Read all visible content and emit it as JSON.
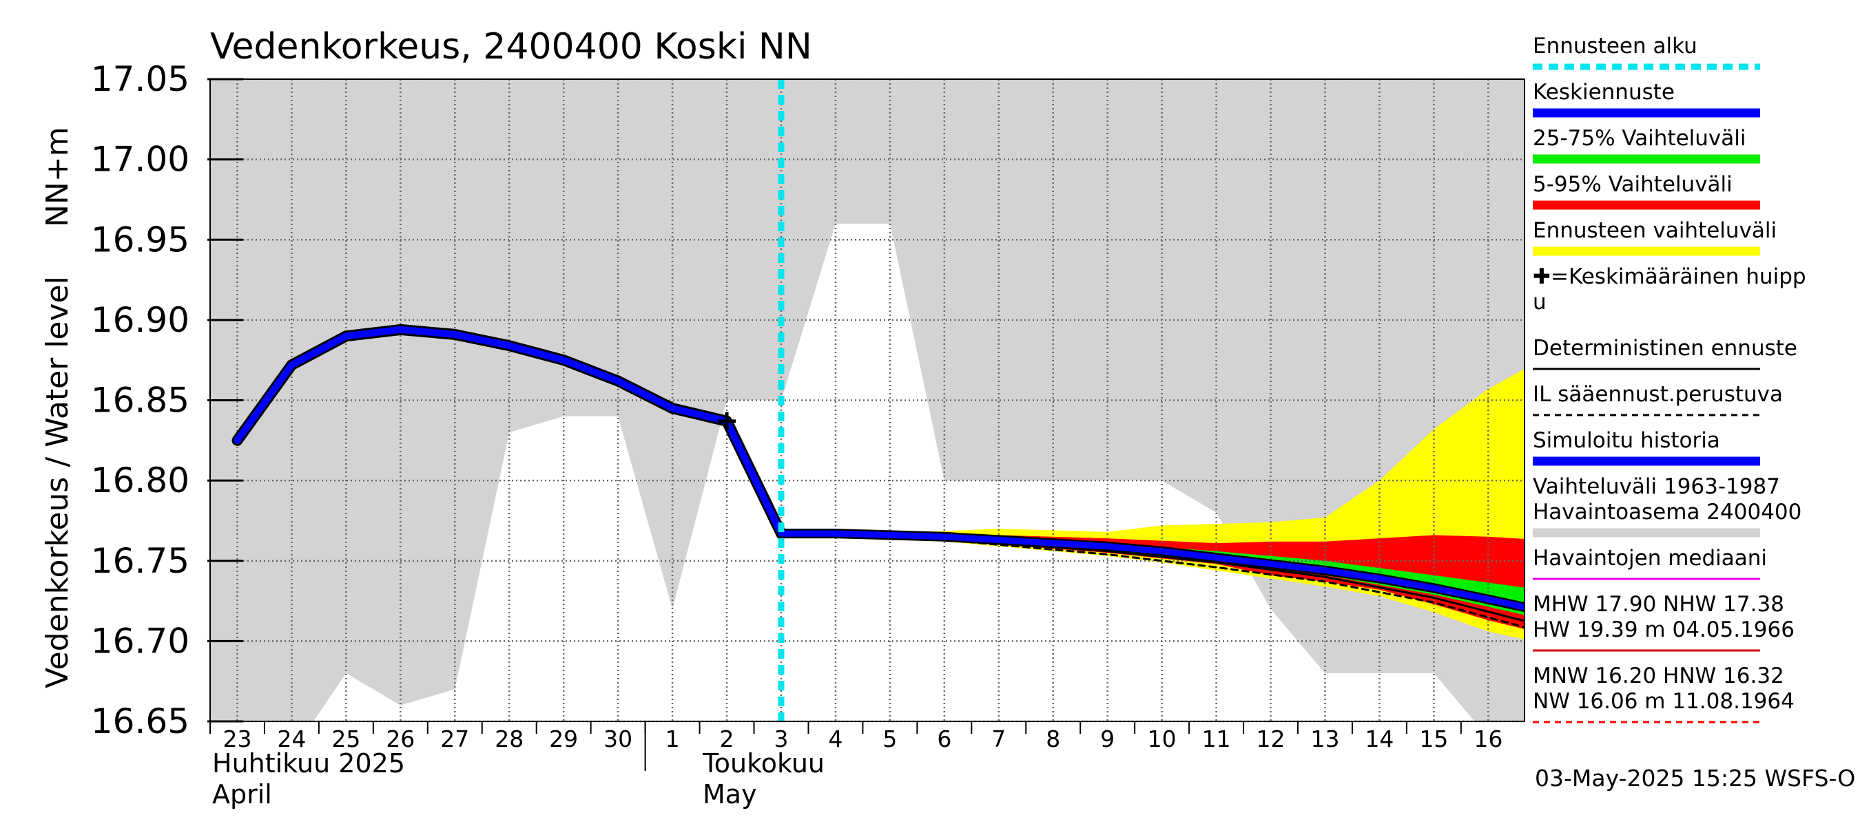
{
  "chart_data": {
    "type": "line",
    "title": "Vedenkorkeus, 2400400 Koski NN",
    "ylabel_left": "Vedenkorkeus / Water level",
    "ylabel_unit": "NN+m",
    "ylim": [
      16.65,
      17.05
    ],
    "y_ticks": [
      "16.65",
      "16.70",
      "16.75",
      "16.80",
      "16.85",
      "16.90",
      "16.95",
      "17.00",
      "17.05"
    ],
    "x_day_labels": [
      "23",
      "24",
      "25",
      "26",
      "27",
      "28",
      "29",
      "30",
      "1",
      "2",
      "3",
      "4",
      "5",
      "6",
      "7",
      "8",
      "9",
      "10",
      "11",
      "12",
      "13",
      "14",
      "15",
      "16"
    ],
    "month_labels": {
      "april_fi": "Huhtikuu  2025",
      "april_en": "April",
      "may_fi": "Toukokuu",
      "may_en": "May"
    },
    "grid": true,
    "forecast_start": "2025-05-03",
    "peak_marker": {
      "date": "2025-05-02",
      "value": 16.837
    },
    "simulated_history": [
      [
        "2025-04-23",
        16.825
      ],
      [
        "2025-04-24",
        16.872
      ],
      [
        "2025-04-25",
        16.89
      ],
      [
        "2025-04-26",
        16.894
      ],
      [
        "2025-04-27",
        16.891
      ],
      [
        "2025-04-28",
        16.884
      ],
      [
        "2025-04-29",
        16.875
      ],
      [
        "2025-04-30",
        16.862
      ],
      [
        "2025-05-01",
        16.845
      ],
      [
        "2025-05-02",
        16.837
      ],
      [
        "2025-05-03",
        16.767
      ]
    ],
    "median_forecast": [
      [
        "2025-05-03",
        16.767
      ],
      [
        "2025-05-04",
        16.767
      ],
      [
        "2025-05-05",
        16.766
      ],
      [
        "2025-05-06",
        16.765
      ],
      [
        "2025-05-07",
        16.763
      ],
      [
        "2025-05-08",
        16.761
      ],
      [
        "2025-05-09",
        16.759
      ],
      [
        "2025-05-10",
        16.756
      ],
      [
        "2025-05-11",
        16.752
      ],
      [
        "2025-05-12",
        16.748
      ],
      [
        "2025-05-13",
        16.744
      ],
      [
        "2025-05-14",
        16.739
      ],
      [
        "2025-05-15",
        16.733
      ],
      [
        "2025-05-16",
        16.726
      ],
      [
        "2025-05-16T23:00",
        16.719
      ]
    ],
    "deterministic_forecast": [
      [
        "2025-05-03",
        16.767
      ],
      [
        "2025-05-05",
        16.766
      ],
      [
        "2025-05-07",
        16.761
      ],
      [
        "2025-05-09",
        16.756
      ],
      [
        "2025-05-11",
        16.749
      ],
      [
        "2025-05-13",
        16.74
      ],
      [
        "2025-05-15",
        16.727
      ],
      [
        "2025-05-16T23:00",
        16.71
      ]
    ],
    "il_forecast": [
      [
        "2025-05-03",
        16.767
      ],
      [
        "2025-05-05",
        16.766
      ],
      [
        "2025-05-07",
        16.76
      ],
      [
        "2025-05-09",
        16.754
      ],
      [
        "2025-05-11",
        16.746
      ],
      [
        "2025-05-13",
        16.737
      ],
      [
        "2025-05-15",
        16.724
      ],
      [
        "2025-05-16T23:00",
        16.706
      ]
    ],
    "band_total": {
      "dates": [
        "2025-05-03",
        "2025-05-05",
        "2025-05-07",
        "2025-05-09",
        "2025-05-10",
        "2025-05-12",
        "2025-05-13",
        "2025-05-14",
        "2025-05-15",
        "2025-05-16",
        "2025-05-16T23:00"
      ],
      "upper": [
        16.767,
        16.767,
        16.77,
        16.768,
        16.772,
        16.774,
        16.777,
        16.8,
        16.832,
        16.857,
        16.875
      ],
      "lower": [
        16.767,
        16.765,
        16.759,
        16.753,
        16.749,
        16.739,
        16.734,
        16.728,
        16.718,
        16.706,
        16.699
      ]
    },
    "band_5_95": {
      "dates": [
        "2025-05-03",
        "2025-05-05",
        "2025-05-07",
        "2025-05-09",
        "2025-05-11",
        "2025-05-12",
        "2025-05-13",
        "2025-05-14",
        "2025-05-15",
        "2025-05-16",
        "2025-05-16T23:00"
      ],
      "upper": [
        16.767,
        16.767,
        16.766,
        16.764,
        16.761,
        16.762,
        16.762,
        16.764,
        16.766,
        16.765,
        16.763
      ],
      "lower": [
        16.767,
        16.765,
        16.76,
        16.755,
        16.748,
        16.741,
        16.737,
        16.732,
        16.723,
        16.713,
        16.705
      ]
    },
    "band_25_75": {
      "dates": [
        "2025-05-03",
        "2025-05-05",
        "2025-05-07",
        "2025-05-09",
        "2025-05-11",
        "2025-05-13",
        "2025-05-15",
        "2025-05-16T23:00"
      ],
      "upper": [
        16.767,
        16.767,
        16.764,
        16.761,
        16.756,
        16.75,
        16.741,
        16.732
      ],
      "lower": [
        16.767,
        16.766,
        16.761,
        16.756,
        16.749,
        16.741,
        16.729,
        16.714
      ]
    },
    "historical_range": {
      "dates": [
        "2025-04-23",
        "2025-04-24",
        "2025-04-25",
        "2025-04-26",
        "2025-04-27",
        "2025-04-28",
        "2025-04-29",
        "2025-04-30",
        "2025-05-01",
        "2025-05-02",
        "2025-05-03",
        "2025-05-04",
        "2025-05-05",
        "2025-05-06",
        "2025-05-07",
        "2025-05-08",
        "2025-05-09",
        "2025-05-10",
        "2025-05-11",
        "2025-05-12",
        "2025-05-13",
        "2025-05-14",
        "2025-05-15",
        "2025-05-16",
        "2025-05-16T23:00"
      ],
      "upper": [
        17.05,
        17.05,
        17.05,
        17.05,
        17.05,
        17.05,
        17.05,
        17.05,
        17.05,
        17.05,
        17.05,
        17.05,
        17.05,
        17.05,
        17.05,
        17.05,
        17.05,
        17.05,
        17.05,
        17.05,
        17.05,
        17.05,
        17.05,
        17.05,
        17.05
      ],
      "lower": [
        16.65,
        16.63,
        16.68,
        16.66,
        16.67,
        16.83,
        16.84,
        16.84,
        16.72,
        16.85,
        16.85,
        16.96,
        16.96,
        16.8,
        16.8,
        16.8,
        16.8,
        16.8,
        16.78,
        16.72,
        16.68,
        16.68,
        16.68,
        16.64,
        16.64
      ]
    },
    "legend": [
      {
        "label": "Ennusteen alku",
        "color": "#00e5ee",
        "style": "dashed-thick"
      },
      {
        "label": "Keskiennuste",
        "color": "#0000ff",
        "style": "line"
      },
      {
        "label": "25-75% Vaihteluväli",
        "color": "#00ee00",
        "style": "line"
      },
      {
        "label": "5-95% Vaihteluväli",
        "color": "#ff0000",
        "style": "line"
      },
      {
        "label": "Ennusteen vaihteluväli",
        "color": "#ffff00",
        "style": "line"
      },
      {
        "label": "✚=Keskimääräinen huipp\nu",
        "color": "#000000",
        "style": "none"
      },
      {
        "label": "Deterministinen ennuste",
        "color": "#000000",
        "style": "thin"
      },
      {
        "label": "IL sääennust.perustuva",
        "color": "#000000",
        "style": "dashed-thin"
      },
      {
        "label": "Simuloitu historia",
        "color": "#0000ff",
        "style": "line"
      },
      {
        "label": "Vaihteluväli 1963-1987\n Havaintoasema 2400400",
        "color": "#d3d3d3",
        "style": "line"
      },
      {
        "label": "Havaintojen mediaani",
        "color": "#ee00ee",
        "style": "thin"
      },
      {
        "label": "MHW  17.90 NHW  17.38\nHW  19.39 m 04.05.1966",
        "color": "#cc0000",
        "style": "thin"
      },
      {
        "label": "MNW  16.20 HNW  16.32\nNW  16.06 m 11.08.1964",
        "color": "#ff0000",
        "style": "dashed-thin"
      }
    ],
    "footer": "03-May-2025 15:25 WSFS-O",
    "colors": {
      "hist_range": "#d3d3d3",
      "yellow_band": "#ffff00",
      "red_band": "#ff0000",
      "green_band": "#00ee00",
      "blue_line": "#0000ff",
      "cyan": "#00e5ee",
      "grid": "#555555"
    }
  }
}
